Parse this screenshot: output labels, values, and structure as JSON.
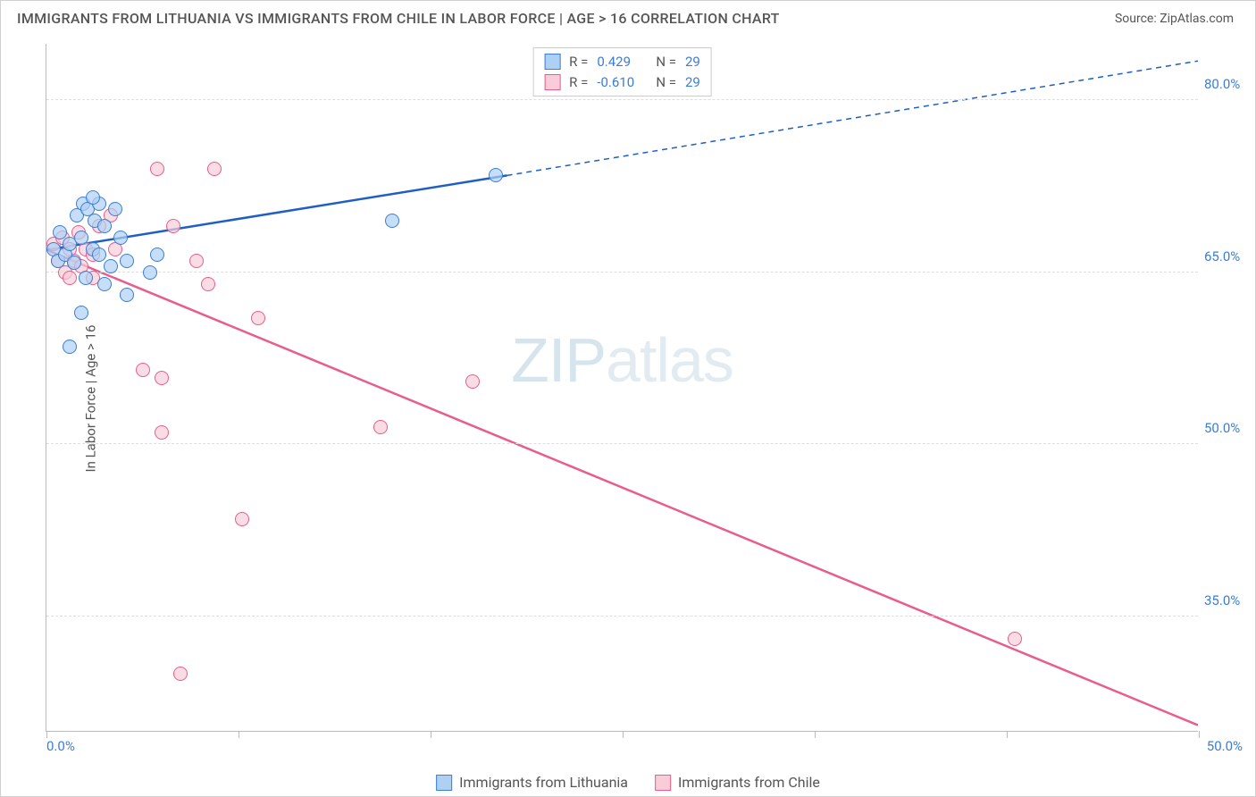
{
  "title": "IMMIGRANTS FROM LITHUANIA VS IMMIGRANTS FROM CHILE IN LABOR FORCE | AGE > 16 CORRELATION CHART",
  "source": "Source: ZipAtlas.com",
  "ylabel": "In Labor Force | Age > 16",
  "watermark_bold": "ZIP",
  "watermark_thin": "atlas",
  "chart": {
    "type": "scatter",
    "xlim": [
      0,
      50
    ],
    "ylim": [
      25,
      85
    ],
    "ytick_values": [
      35.0,
      50.0,
      65.0,
      80.0
    ],
    "ytick_labels": [
      "35.0%",
      "50.0%",
      "65.0%",
      "80.0%"
    ],
    "xtick_positions": [
      0,
      8.33,
      16.66,
      25,
      33.33,
      41.66,
      50
    ],
    "x_start_label": "0.0%",
    "x_end_label": "50.0%",
    "background_color": "#ffffff",
    "grid_color": "#dddddd",
    "series": {
      "lithuania": {
        "label": "Immigrants from Lithuania",
        "color_fill": "#aed0f3",
        "color_stroke": "#3b7dd8",
        "R": "0.429",
        "N": "29",
        "regression": {
          "x1": 0,
          "y1": 67,
          "x2_solid": 20,
          "y2_solid": 73.5,
          "x2_dash": 50,
          "y2_dash": 83.5
        },
        "points": [
          {
            "x": 0.3,
            "y": 67
          },
          {
            "x": 0.5,
            "y": 66
          },
          {
            "x": 0.6,
            "y": 68.5
          },
          {
            "x": 0.8,
            "y": 66.5
          },
          {
            "x": 1.0,
            "y": 67.5
          },
          {
            "x": 1.2,
            "y": 65.8
          },
          {
            "x": 1.3,
            "y": 70
          },
          {
            "x": 1.5,
            "y": 68
          },
          {
            "x": 1.5,
            "y": 61.5
          },
          {
            "x": 1.6,
            "y": 71
          },
          {
            "x": 1.7,
            "y": 64.5
          },
          {
            "x": 1.8,
            "y": 70.5
          },
          {
            "x": 2.0,
            "y": 67
          },
          {
            "x": 2.1,
            "y": 69.5
          },
          {
            "x": 2.3,
            "y": 71
          },
          {
            "x": 2.3,
            "y": 66.5
          },
          {
            "x": 2.5,
            "y": 64
          },
          {
            "x": 2.8,
            "y": 65.5
          },
          {
            "x": 3.0,
            "y": 70.5
          },
          {
            "x": 3.2,
            "y": 68
          },
          {
            "x": 3.5,
            "y": 66
          },
          {
            "x": 3.5,
            "y": 63
          },
          {
            "x": 4.5,
            "y": 65
          },
          {
            "x": 4.8,
            "y": 66.5
          },
          {
            "x": 1.0,
            "y": 58.5
          },
          {
            "x": 15.0,
            "y": 69.5
          },
          {
            "x": 19.5,
            "y": 73.5
          },
          {
            "x": 2.0,
            "y": 71.5
          },
          {
            "x": 2.5,
            "y": 69
          }
        ]
      },
      "chile": {
        "label": "Immigrants from Chile",
        "color_fill": "#f8cdd9",
        "color_stroke": "#e85d8b",
        "R": "-0.610",
        "N": "29",
        "regression": {
          "x1": 0,
          "y1": 67,
          "x2": 50,
          "y2": 25.5
        },
        "points": [
          {
            "x": 0.3,
            "y": 67.5
          },
          {
            "x": 0.5,
            "y": 66
          },
          {
            "x": 0.7,
            "y": 68
          },
          {
            "x": 0.8,
            "y": 65
          },
          {
            "x": 1.0,
            "y": 67
          },
          {
            "x": 1.0,
            "y": 64.5
          },
          {
            "x": 1.2,
            "y": 66
          },
          {
            "x": 1.4,
            "y": 68.5
          },
          {
            "x": 1.5,
            "y": 65.5
          },
          {
            "x": 1.7,
            "y": 67
          },
          {
            "x": 2.0,
            "y": 66.5
          },
          {
            "x": 2.0,
            "y": 64.5
          },
          {
            "x": 2.3,
            "y": 69
          },
          {
            "x": 2.8,
            "y": 70
          },
          {
            "x": 4.8,
            "y": 74
          },
          {
            "x": 7.3,
            "y": 74
          },
          {
            "x": 5.5,
            "y": 69
          },
          {
            "x": 6.5,
            "y": 66
          },
          {
            "x": 7.0,
            "y": 64
          },
          {
            "x": 9.2,
            "y": 61
          },
          {
            "x": 4.2,
            "y": 56.5
          },
          {
            "x": 5.0,
            "y": 55.8
          },
          {
            "x": 5.0,
            "y": 51
          },
          {
            "x": 8.5,
            "y": 43.5
          },
          {
            "x": 14.5,
            "y": 51.5
          },
          {
            "x": 18.5,
            "y": 55.5
          },
          {
            "x": 5.8,
            "y": 30
          },
          {
            "x": 42,
            "y": 33
          },
          {
            "x": 3.0,
            "y": 67
          }
        ]
      }
    }
  },
  "legend_top": {
    "r_label": "R =",
    "n_label": "N ="
  }
}
